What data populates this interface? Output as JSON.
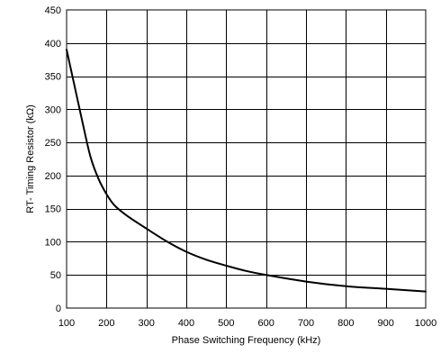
{
  "chart_data": {
    "type": "line",
    "title": "",
    "xlabel": "Phase Switching Frequency (kHz)",
    "ylabel": "RT- Timing Resistor (kΩ)",
    "xlim": [
      100,
      1000
    ],
    "ylim": [
      0,
      450
    ],
    "xticks": [
      "100",
      "200",
      "300",
      "400",
      "500",
      "600",
      "700",
      "800",
      "900",
      "1000"
    ],
    "yticks": [
      "0",
      "50",
      "100",
      "150",
      "200",
      "250",
      "300",
      "350",
      "400",
      "450"
    ],
    "grid": true,
    "legend": "none",
    "line_color": "#000000",
    "series": [
      {
        "x": [
          100,
          120,
          140,
          160,
          180,
          200,
          220,
          250,
          300,
          350,
          400,
          450,
          500,
          550,
          600,
          700,
          800,
          900,
          1000
        ],
        "y": [
          390,
          335,
          280,
          228,
          195,
          172,
          155,
          140,
          120,
          101,
          85,
          73,
          64,
          56,
          50,
          40,
          33,
          29,
          25
        ]
      }
    ]
  }
}
